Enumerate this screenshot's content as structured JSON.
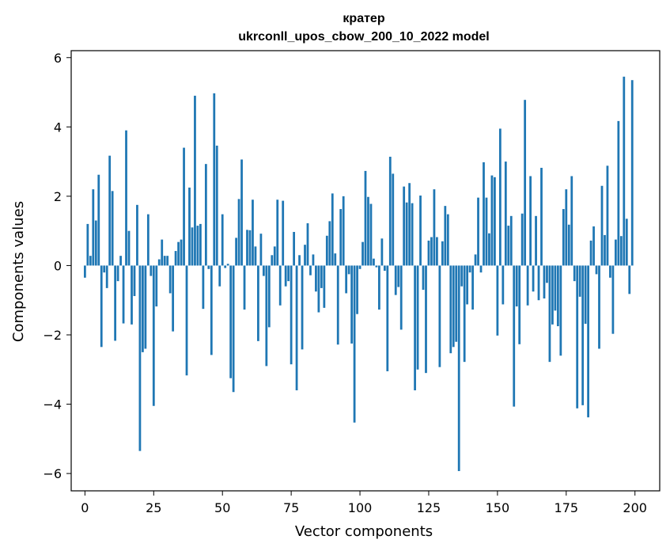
{
  "chart_data": {
    "type": "bar",
    "title": "кратер",
    "subtitle": "ukrconll_upos_cbow_200_10_2022 model",
    "xlabel": "Vector components",
    "ylabel": "Components values",
    "xlim": [
      -5,
      209
    ],
    "ylim": [
      -6.5,
      6.2
    ],
    "xticks": [
      0,
      25,
      50,
      75,
      100,
      125,
      150,
      175,
      200
    ],
    "yticks": [
      -6,
      -4,
      -2,
      0,
      2,
      4,
      6
    ],
    "xtick_labels": [
      "0",
      "25",
      "50",
      "75",
      "100",
      "125",
      "150",
      "175",
      "200"
    ],
    "ytick_labels": [
      "−6",
      "−4",
      "−2",
      "0",
      "2",
      "4",
      "6"
    ],
    "grid": false,
    "bar_color": "#1f77b4",
    "values": [
      -0.35,
      1.2,
      0.28,
      2.2,
      1.3,
      2.62,
      -2.35,
      -0.2,
      -0.65,
      3.17,
      2.15,
      -2.17,
      -0.45,
      0.28,
      -1.67,
      3.9,
      1.0,
      -1.7,
      -0.88,
      1.75,
      -5.35,
      -2.5,
      -2.4,
      1.48,
      -0.3,
      -4.05,
      -1.18,
      0.18,
      0.75,
      0.28,
      0.28,
      -0.8,
      -1.9,
      0.42,
      0.68,
      0.75,
      3.4,
      -3.17,
      2.25,
      1.1,
      4.9,
      1.15,
      1.2,
      -1.25,
      2.93,
      -0.1,
      -2.58,
      4.97,
      3.46,
      -0.6,
      1.48,
      -0.07,
      0.05,
      -3.25,
      -3.65,
      0.8,
      1.92,
      3.06,
      -1.27,
      1.03,
      1.02,
      1.9,
      0.55,
      -2.18,
      0.92,
      -0.3,
      -2.9,
      -1.78,
      0.3,
      0.55,
      1.9,
      -1.15,
      1.87,
      -0.6,
      -0.45,
      -2.85,
      0.97,
      -3.6,
      0.3,
      -2.42,
      0.6,
      1.22,
      -0.28,
      0.32,
      -0.75,
      -1.35,
      -0.65,
      -1.22,
      0.86,
      1.28,
      2.08,
      0.35,
      -2.28,
      1.63,
      2.0,
      -0.8,
      -0.25,
      -2.25,
      -4.53,
      -1.4,
      -0.1,
      0.68,
      2.73,
      1.98,
      1.78,
      0.2,
      -0.05,
      -1.27,
      0.78,
      -0.15,
      -3.05,
      3.14,
      2.65,
      -0.85,
      -0.62,
      -1.85,
      2.28,
      1.82,
      2.38,
      1.8,
      -3.6,
      -3.0,
      2.02,
      -0.7,
      -3.1,
      0.72,
      0.82,
      2.2,
      0.82,
      -2.93,
      0.7,
      1.72,
      1.48,
      -2.53,
      -2.35,
      -2.2,
      -5.93,
      -0.6,
      -2.78,
      -1.12,
      -0.2,
      -1.27,
      0.32,
      1.96,
      -0.2,
      2.98,
      1.96,
      0.93,
      2.6,
      2.55,
      -2.02,
      3.95,
      -1.12,
      3.0,
      1.15,
      1.43,
      -4.07,
      -1.18,
      -2.27,
      1.5,
      4.78,
      -1.15,
      2.58,
      -0.75,
      1.43,
      -1.0,
      2.82,
      -0.95,
      -0.5,
      -2.78,
      -1.7,
      -1.3,
      -1.75,
      -2.6,
      1.63,
      2.2,
      1.18,
      2.58,
      -0.45,
      -4.12,
      -0.9,
      -4.03,
      -1.68,
      -4.38,
      0.72,
      1.13,
      -0.25,
      -2.4,
      2.3,
      0.88,
      2.88,
      -0.35,
      -1.97,
      0.75,
      4.17,
      0.85,
      5.45,
      1.35,
      -0.82,
      5.35
    ]
  }
}
